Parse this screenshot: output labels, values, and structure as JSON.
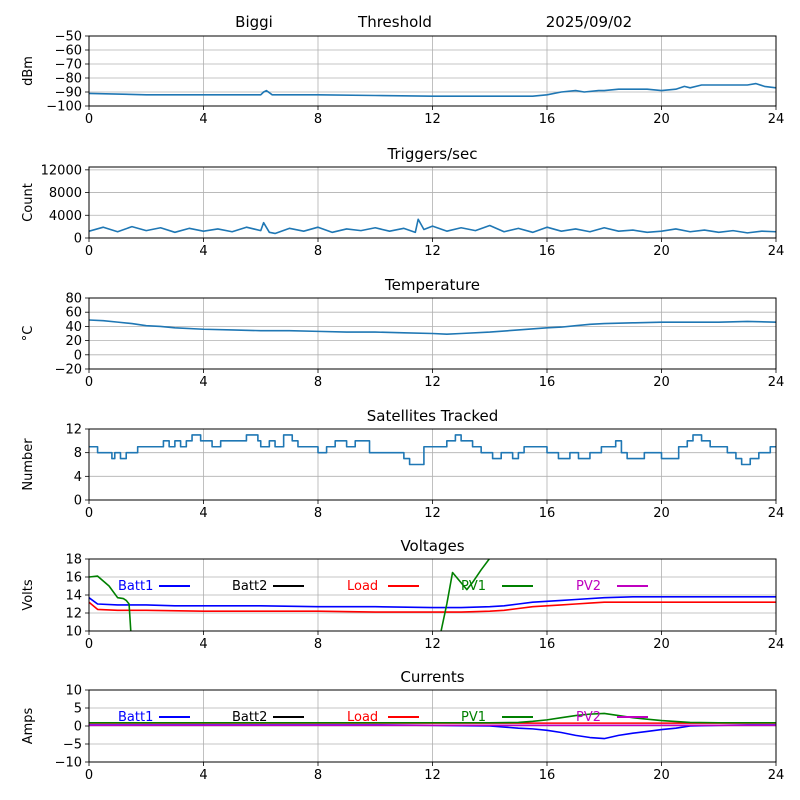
{
  "header": {
    "station": "Biggi",
    "panel": "Threshold",
    "date": "2025/09/02"
  },
  "chart_data": [
    {
      "type": "line",
      "title": "",
      "xlabel": "",
      "ylabel": "dBm",
      "xlim": [
        0,
        24
      ],
      "ylim": [
        -100,
        -50
      ],
      "xticks": [
        0,
        4,
        8,
        12,
        16,
        20,
        24
      ],
      "yticks": [
        -100,
        -90,
        -80,
        -70,
        -60,
        -50
      ],
      "grid": true,
      "series": [
        {
          "color": "#1f77b4",
          "x": [
            0,
            2,
            4,
            6,
            6.1,
            6.2,
            6.4,
            8,
            10,
            12,
            14,
            15.5,
            16,
            16.5,
            17,
            17.3,
            17.8,
            18,
            18.5,
            19,
            19.5,
            20,
            20.5,
            20.8,
            21,
            21.4,
            21.8,
            22.5,
            23,
            23.3,
            23.6,
            24
          ],
          "y": [
            -91,
            -92,
            -92,
            -92,
            -90,
            -89,
            -92,
            -92,
            -92.5,
            -93,
            -93,
            -93,
            -92,
            -90,
            -89,
            -90,
            -89,
            -89,
            -88,
            -88,
            -88,
            -89,
            -88,
            -86,
            -87,
            -85,
            -85,
            -85,
            -85,
            -84,
            -86,
            -87
          ]
        }
      ]
    },
    {
      "type": "line",
      "title": "Triggers/sec",
      "xlabel": "",
      "ylabel": "Count",
      "xlim": [
        0,
        24
      ],
      "ylim": [
        0,
        12500
      ],
      "xticks": [
        0,
        4,
        8,
        12,
        16,
        20,
        24
      ],
      "yticks": [
        0,
        4000,
        8000,
        12000
      ],
      "grid": true,
      "series": [
        {
          "color": "#1f77b4",
          "x": [
            0,
            0.5,
            1,
            1.5,
            2,
            2.5,
            3,
            3.5,
            4,
            4.5,
            5,
            5.5,
            6,
            6.1,
            6.3,
            6.5,
            7,
            7.5,
            8,
            8.5,
            9,
            9.5,
            10,
            10.5,
            11,
            11.4,
            11.5,
            11.7,
            12,
            12.5,
            13,
            13.5,
            14,
            14.5,
            15,
            15.5,
            16,
            16.5,
            17,
            17.5,
            18,
            18.5,
            19,
            19.5,
            20,
            20.5,
            21,
            21.5,
            22,
            22.5,
            23,
            23.5,
            24
          ],
          "y": [
            1200,
            1900,
            1100,
            2000,
            1300,
            1800,
            1000,
            1700,
            1200,
            1600,
            1100,
            1900,
            1300,
            2700,
            1000,
            800,
            1700,
            1200,
            1900,
            1000,
            1600,
            1300,
            1800,
            1200,
            1700,
            1000,
            3300,
            1500,
            2100,
            1200,
            1800,
            1300,
            2200,
            1100,
            1700,
            1000,
            1900,
            1200,
            1600,
            1100,
            1800,
            1200,
            1400,
            1000,
            1200,
            1600,
            1100,
            1400,
            1000,
            1300,
            900,
            1200,
            1100
          ]
        }
      ]
    },
    {
      "type": "line",
      "title": "Temperature",
      "xlabel": "",
      "ylabel": "°C",
      "xlim": [
        0,
        24
      ],
      "ylim": [
        -20,
        80
      ],
      "xticks": [
        0,
        4,
        8,
        12,
        16,
        20,
        24
      ],
      "yticks": [
        -20,
        0,
        20,
        40,
        60,
        80
      ],
      "grid": true,
      "series": [
        {
          "color": "#1f77b4",
          "x": [
            0,
            0.5,
            1,
            1.5,
            2,
            2.5,
            3,
            4,
            5,
            6,
            7,
            8,
            9,
            10,
            11,
            12,
            12.5,
            13,
            14,
            15,
            16,
            16.5,
            17,
            17.5,
            18,
            19,
            20,
            21,
            22,
            23,
            24
          ],
          "y": [
            49,
            48,
            46,
            44,
            41,
            40,
            38,
            36,
            35,
            34,
            34,
            33,
            32,
            32,
            31,
            30,
            29,
            30,
            32,
            35,
            38,
            39,
            41,
            43,
            44,
            45,
            46,
            46,
            46,
            47,
            46
          ]
        }
      ]
    },
    {
      "type": "line",
      "title": "Satellites Tracked",
      "xlabel": "",
      "ylabel": "Number",
      "xlim": [
        0,
        24
      ],
      "ylim": [
        0,
        12
      ],
      "xticks": [
        0,
        4,
        8,
        12,
        16,
        20,
        24
      ],
      "yticks": [
        0,
        4,
        8,
        12
      ],
      "grid": true,
      "series": [
        {
          "color": "#1f77b4",
          "step": true,
          "x": [
            0,
            0.3,
            0.8,
            0.9,
            1.1,
            1.3,
            1.7,
            2.2,
            2.6,
            2.8,
            3.0,
            3.2,
            3.4,
            3.6,
            3.9,
            4.3,
            4.6,
            5.0,
            5.5,
            5.9,
            6.0,
            6.3,
            6.5,
            6.8,
            7.1,
            7.3,
            7.6,
            8.0,
            8.3,
            8.6,
            9.0,
            9.3,
            9.8,
            10.3,
            11.0,
            11.2,
            11.7,
            12.5,
            12.8,
            13.0,
            13.4,
            13.7,
            14.1,
            14.4,
            14.8,
            15.0,
            15.2,
            15.6,
            16.0,
            16.4,
            16.8,
            17.1,
            17.5,
            17.9,
            18.4,
            18.6,
            18.8,
            19.4,
            19.7,
            20.0,
            20.6,
            20.9,
            21.1,
            21.4,
            21.7,
            22.3,
            22.6,
            22.8,
            23.1,
            23.4,
            23.8,
            24
          ],
          "y": [
            9,
            8,
            7,
            8,
            7,
            8,
            9,
            9,
            10,
            9,
            10,
            9,
            10,
            11,
            10,
            9,
            10,
            10,
            11,
            10,
            9,
            10,
            9,
            11,
            10,
            9,
            9,
            8,
            9,
            10,
            9,
            10,
            8,
            8,
            7,
            6,
            9,
            10,
            11,
            10,
            9,
            8,
            7,
            8,
            7,
            8,
            9,
            9,
            8,
            7,
            8,
            7,
            8,
            9,
            10,
            8,
            7,
            8,
            8,
            7,
            9,
            10,
            11,
            10,
            9,
            8,
            7,
            6,
            7,
            8,
            9,
            9
          ]
        }
      ]
    },
    {
      "type": "line",
      "title": "Voltages",
      "xlabel": "",
      "ylabel": "Volts",
      "xlim": [
        0,
        24
      ],
      "ylim": [
        10,
        18
      ],
      "xticks": [
        0,
        4,
        8,
        12,
        16,
        20,
        24
      ],
      "yticks": [
        10,
        12,
        14,
        16,
        18
      ],
      "grid": true,
      "legend": "top, single row",
      "series": [
        {
          "name": "Batt1",
          "color": "#0000ff",
          "x": [
            0,
            0.3,
            1,
            2,
            3,
            4,
            6,
            8,
            10,
            12,
            13,
            14,
            14.5,
            15,
            15.5,
            16,
            16.5,
            17,
            18,
            19,
            20,
            21,
            22,
            23,
            24
          ],
          "y": [
            13.7,
            13.0,
            12.9,
            12.9,
            12.8,
            12.8,
            12.8,
            12.7,
            12.7,
            12.6,
            12.6,
            12.7,
            12.8,
            13.0,
            13.2,
            13.3,
            13.4,
            13.5,
            13.7,
            13.8,
            13.8,
            13.8,
            13.8,
            13.8,
            13.8
          ]
        },
        {
          "name": "Batt2",
          "color": "#000000",
          "x": [],
          "y": []
        },
        {
          "name": "Load",
          "color": "#ff0000",
          "x": [
            0,
            0.3,
            1,
            2,
            4,
            6,
            8,
            10,
            12,
            13,
            14,
            14.5,
            15,
            15.5,
            16,
            16.5,
            17,
            17.5,
            18,
            19,
            20,
            21,
            22,
            23,
            24
          ],
          "y": [
            13.2,
            12.4,
            12.3,
            12.3,
            12.2,
            12.2,
            12.2,
            12.1,
            12.1,
            12.1,
            12.2,
            12.3,
            12.5,
            12.7,
            12.8,
            12.9,
            13.0,
            13.1,
            13.2,
            13.2,
            13.2,
            13.2,
            13.2,
            13.2,
            13.2
          ]
        },
        {
          "name": "PV1",
          "color": "#008000",
          "x": [
            0,
            0.3,
            0.7,
            1.0,
            1.2,
            1.3,
            1.4,
            1.5,
            12.2,
            12.3,
            12.5,
            12.7,
            13.2,
            13.4,
            13.7,
            14.1
          ],
          "y": [
            16.0,
            16.1,
            15.0,
            13.7,
            13.6,
            13.4,
            13.0,
            8.0,
            8.0,
            10.0,
            13.0,
            16.5,
            14.6,
            15.4,
            16.8,
            18.5
          ]
        },
        {
          "name": "PV2",
          "color": "#bf00bf",
          "x": [],
          "y": []
        }
      ]
    },
    {
      "type": "line",
      "title": "Currents",
      "xlabel": "",
      "ylabel": "Amps",
      "xlim": [
        0,
        24
      ],
      "ylim": [
        -10,
        10
      ],
      "xticks": [
        0,
        4,
        8,
        12,
        16,
        20,
        24
      ],
      "yticks": [
        -10,
        -5,
        0,
        5,
        10
      ],
      "grid": true,
      "legend": "top, single row",
      "series": [
        {
          "name": "Batt1",
          "color": "#0000ff",
          "x": [
            0,
            2,
            4,
            6,
            8,
            10,
            12,
            13,
            14,
            14.5,
            15,
            15.5,
            16,
            16.5,
            17,
            17.5,
            18,
            18.5,
            19,
            19.5,
            20,
            20.5,
            21,
            22,
            23,
            24
          ],
          "y": [
            0.3,
            0.3,
            0.3,
            0.3,
            0.3,
            0.3,
            0.2,
            0.1,
            0.0,
            -0.3,
            -0.6,
            -0.8,
            -1.2,
            -1.8,
            -2.6,
            -3.2,
            -3.5,
            -2.6,
            -2.0,
            -1.5,
            -1.0,
            -0.6,
            0.0,
            0.2,
            0.3,
            0.3
          ]
        },
        {
          "name": "Batt2",
          "color": "#000000",
          "x": [],
          "y": []
        },
        {
          "name": "Load",
          "color": "#ff0000",
          "x": [
            0,
            4,
            8,
            12,
            14,
            16,
            18,
            20,
            22,
            24
          ],
          "y": [
            0.8,
            0.8,
            0.8,
            0.8,
            0.8,
            0.8,
            0.8,
            0.8,
            0.8,
            0.8
          ]
        },
        {
          "name": "PV1",
          "color": "#008000",
          "x": [
            0,
            2,
            4,
            6,
            8,
            10,
            12,
            13,
            14,
            15,
            15.5,
            16,
            16.5,
            17,
            17.5,
            18,
            18.5,
            19,
            19.5,
            20,
            21,
            22,
            23,
            24
          ],
          "y": [
            0.9,
            0.9,
            0.9,
            0.9,
            0.9,
            0.9,
            0.9,
            0.9,
            0.9,
            1.0,
            1.3,
            1.7,
            2.3,
            2.9,
            3.3,
            3.5,
            2.9,
            2.3,
            1.9,
            1.5,
            1.0,
            0.9,
            0.9,
            0.9
          ]
        },
        {
          "name": "PV2",
          "color": "#bf00bf",
          "x": [
            0,
            2,
            4,
            6,
            8,
            10,
            12,
            14,
            16,
            18,
            20,
            22,
            24
          ],
          "y": [
            0.2,
            0.2,
            0.2,
            0.2,
            0.2,
            0.2,
            0.2,
            0.2,
            0.2,
            0.2,
            0.2,
            0.2,
            0.2
          ]
        }
      ]
    }
  ]
}
